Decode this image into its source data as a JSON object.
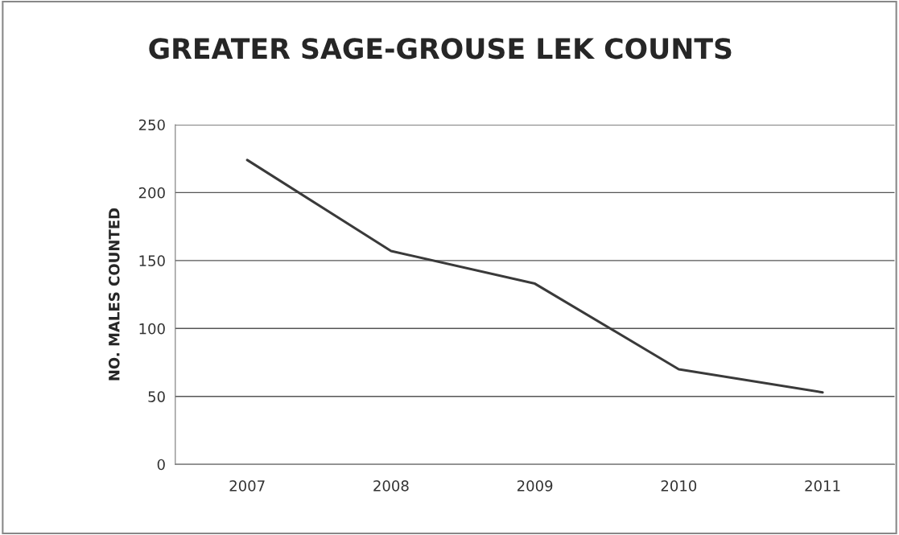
{
  "chart_data": {
    "type": "line",
    "title": "GREATER SAGE-GROUSE LEK COUNTS",
    "ylabel": "NO. MALES COUNTED",
    "categories": [
      "2007",
      "2008",
      "2009",
      "2010",
      "2011"
    ],
    "series": [
      {
        "color": "#3a3a3a",
        "values": [
          224,
          157,
          133,
          70,
          53
        ]
      }
    ],
    "ylim": [
      0,
      250
    ],
    "yticks": [
      0,
      50,
      100,
      150,
      200,
      250
    ],
    "grid": "y",
    "legend": false,
    "marker": "none",
    "line_style": "solid"
  }
}
